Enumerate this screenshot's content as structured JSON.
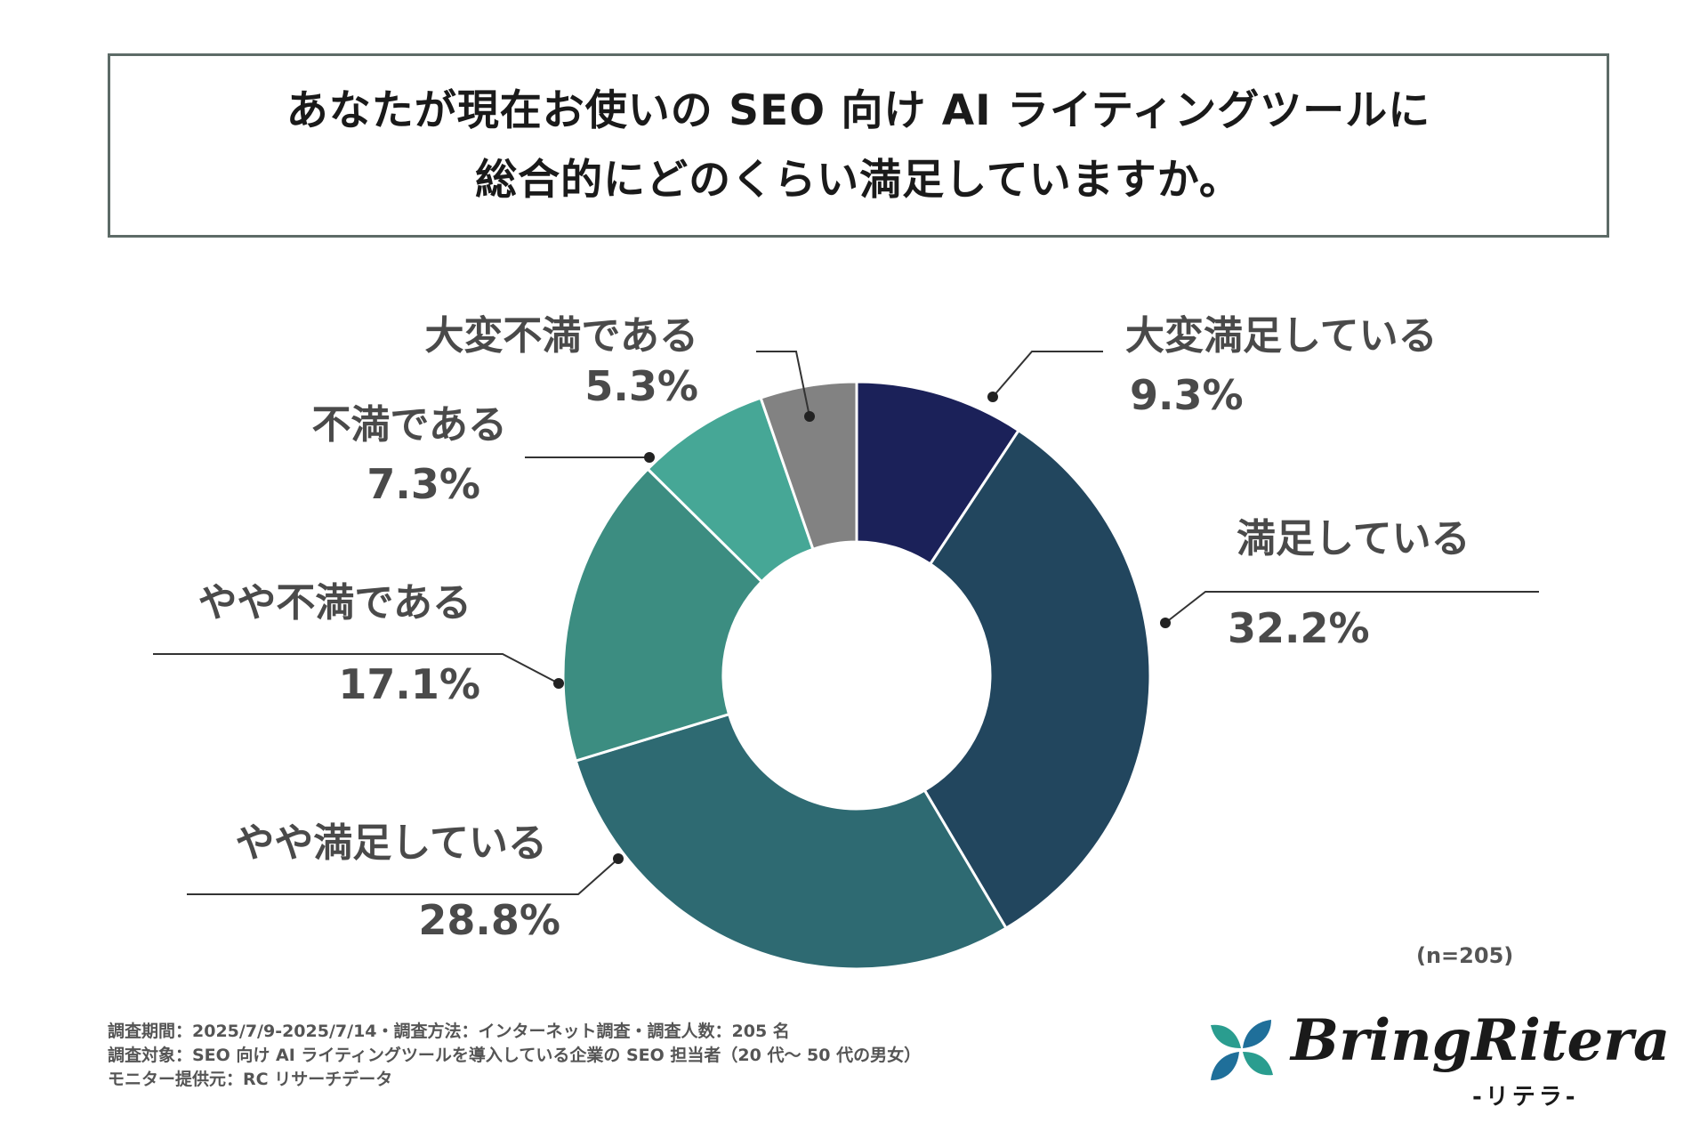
{
  "title": {
    "line1": "あなたが現在お使いの SEO 向け AI ライティングツールに",
    "line2": "総合的にどのくらい満足していますか。"
  },
  "chart_data": {
    "type": "pie",
    "donut": true,
    "categories": [
      "大変満足している",
      "満足している",
      "やや満足している",
      "やや不満である",
      "不満である",
      "大変不満である"
    ],
    "values": [
      9.3,
      32.2,
      28.8,
      17.1,
      7.3,
      5.3
    ],
    "labels": [
      "9.3%",
      "32.2%",
      "28.8%",
      "17.1%",
      "7.3%",
      "5.3%"
    ],
    "colors": [
      "#1b2159",
      "#22465e",
      "#2e6a72",
      "#3c8d81",
      "#46a796",
      "#828282"
    ],
    "n": "(n=205)"
  },
  "footnotes": [
    "調査期間：2025/7/9-2025/7/14・調査方法：インターネット調査・調査人数：205 名",
    "調査対象：SEO 向け AI ライティングツールを導入している企業の SEO 担当者（20 代～ 50 代の男女）",
    "モニター提供元：RC リサーチデータ"
  ],
  "logo": {
    "name": "BringRitera",
    "sub": "-リテラ-",
    "colors": [
      "#2a9d8f",
      "#1f6f9a"
    ]
  }
}
